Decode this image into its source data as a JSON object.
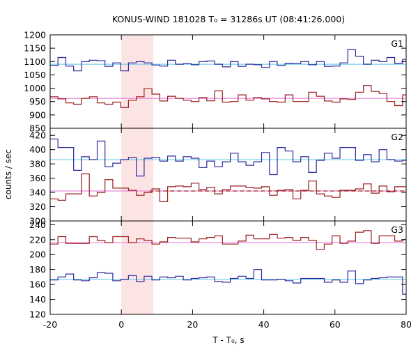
{
  "chart_data": {
    "type": "line",
    "title": "KONUS-WIND 181028 T₀ = 31286s UT (08:41:26.000)",
    "xlabel": "T - T₀, s",
    "ylabel": "counts / sec",
    "xlim": [
      -20,
      80
    ],
    "x_ticks": [
      -20,
      0,
      20,
      40,
      60,
      80
    ],
    "highlight_interval": [
      0,
      9
    ],
    "colors": {
      "blue_series": "#2a2a9e",
      "red_series": "#9b1c1c",
      "blue_bg": "#5ec8e8",
      "red_bg": "#e46ed6",
      "highlight": "#fde4e4"
    },
    "bin_edges": [
      -20,
      -17.8,
      -15.6,
      -13.4,
      -11.2,
      -9,
      -6.8,
      -4.6,
      -2.4,
      -0.2,
      2,
      4.2,
      6.4,
      8.6,
      10.8,
      13,
      15.2,
      17.4,
      19.6,
      21.8,
      24,
      26.2,
      28.4,
      30.6,
      32.8,
      35,
      37.2,
      39.4,
      41.6,
      43.8,
      46,
      48.2,
      50.4,
      52.6,
      54.8,
      57,
      59.2,
      61.4,
      63.6,
      65.8,
      68,
      70.2,
      72.4,
      74.6,
      76.8,
      79,
      80
    ],
    "panels": [
      {
        "label": "G1",
        "ylim": [
          850,
          1200
        ],
        "y_ticks": [
          850,
          900,
          950,
          1000,
          1050,
          1100,
          1150,
          1200
        ],
        "series": [
          {
            "color": "blue",
            "values": [
              1085,
              1115,
              1083,
              1065,
              1100,
              1105,
              1103,
              1082,
              1095,
              1065,
              1095,
              1100,
              1095,
              1087,
              1083,
              1105,
              1090,
              1092,
              1088,
              1100,
              1102,
              1090,
              1080,
              1100,
              1082,
              1090,
              1088,
              1078,
              1100,
              1085,
              1093,
              1092,
              1100,
              1088,
              1100,
              1082,
              1083,
              1095,
              1145,
              1120,
              1090,
              1105,
              1100,
              1115,
              1093,
              1108,
              1108
            ],
            "background": 1090
          },
          {
            "color": "red",
            "values": [
              968,
              960,
              945,
              940,
              962,
              968,
              945,
              940,
              948,
              928,
              955,
              968,
              998,
              978,
              952,
              970,
              962,
              955,
              950,
              965,
              953,
              990,
              948,
              950,
              975,
              955,
              965,
              960,
              950,
              948,
              975,
              950,
              950,
              985,
              970,
              952,
              948,
              960,
              958,
              985,
              1010,
              988,
              980,
              950,
              935,
              975,
              975
            ],
            "background": 962
          }
        ]
      },
      {
        "label": "G2",
        "ylim": [
          300,
          430
        ],
        "y_ticks": [
          300,
          320,
          340,
          360,
          380,
          400,
          420
        ],
        "series": [
          {
            "color": "blue",
            "values": [
              415,
              403,
              403,
              371,
              390,
              386,
              412,
              376,
              381,
              386,
              389,
              363,
              388,
              389,
              384,
              391,
              384,
              390,
              388,
              375,
              384,
              376,
              383,
              395,
              383,
              378,
              383,
              396,
              365,
              403,
              398,
              383,
              390,
              368,
              385,
              395,
              388,
              403,
              403,
              385,
              393,
              383,
              400,
              386,
              384,
              385,
              385
            ],
            "background": 386
          },
          {
            "color": "red",
            "values": [
              331,
              329,
              338,
              338,
              366,
              335,
              340,
              358,
              346,
              346,
              343,
              336,
              340,
              345,
              327,
              348,
              349,
              348,
              353,
              344,
              347,
              338,
              344,
              349,
              349,
              347,
              346,
              348,
              336,
              343,
              344,
              331,
              343,
              356,
              338,
              335,
              333,
              343,
              343,
              345,
              352,
              339,
              349,
              341,
              348,
              348,
              348
            ],
            "background": 342,
            "background_dashed": true
          }
        ]
      },
      {
        "label": "G3",
        "ylim": [
          120,
          245
        ],
        "y_ticks": [
          120,
          140,
          160,
          180,
          200,
          220,
          240
        ],
        "series": [
          {
            "color": "red",
            "values": [
              214,
              224,
              215,
              215,
              215,
              224,
              219,
              216,
              224,
              224,
              216,
              221,
              219,
              214,
              217,
              223,
              222,
              222,
              217,
              221,
              223,
              225,
              214,
              214,
              218,
              226,
              221,
              221,
              227,
              222,
              223,
              219,
              223,
              219,
              207,
              214,
              225,
              215,
              218,
              230,
              232,
              215,
              225,
              225,
              218,
              220,
              220
            ],
            "background": 216
          },
          {
            "color": "blue",
            "values": [
              166,
              170,
              174,
              166,
              165,
              169,
              176,
              175,
              165,
              167,
              172,
              164,
              171,
              166,
              170,
              169,
              171,
              166,
              168,
              169,
              170,
              164,
              163,
              168,
              171,
              168,
              180,
              166,
              166,
              167,
              165,
              162,
              168,
              168,
              168,
              163,
              166,
              163,
              178,
              161,
              166,
              168,
              169,
              170,
              170,
              147,
              147
            ],
            "background": 167
          }
        ]
      }
    ]
  }
}
